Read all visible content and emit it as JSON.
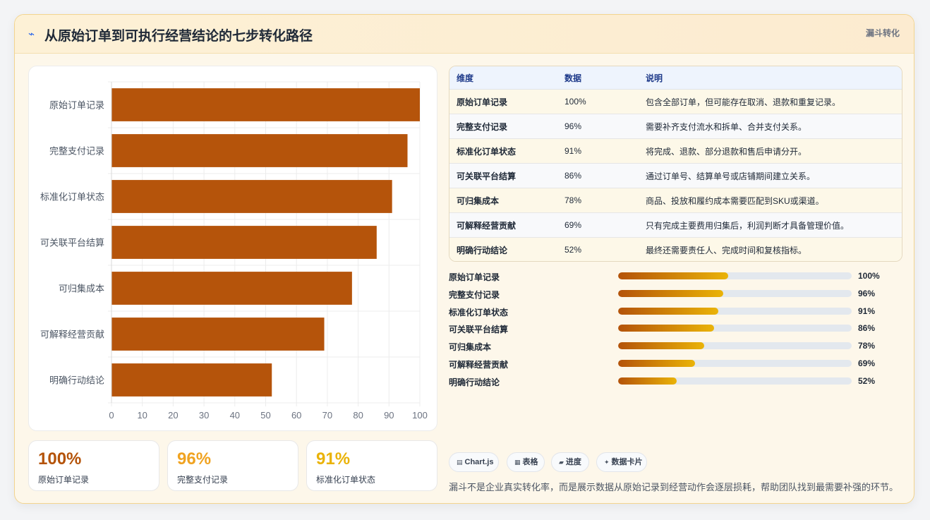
{
  "header": {
    "icon": "lightning-icon",
    "title": "从原始订单到可执行经营结论的七步转化路径",
    "tag": "漏斗转化"
  },
  "chart_data": {
    "type": "bar",
    "orientation": "horizontal",
    "categories": [
      "原始订单记录",
      "完整支付记录",
      "标准化订单状态",
      "可关联平台结算",
      "可归集成本",
      "可解释经营贡献",
      "明确行动结论"
    ],
    "values": [
      100,
      96,
      91,
      86,
      78,
      69,
      52
    ],
    "xlim": [
      0,
      100
    ],
    "xticks": [
      0,
      10,
      20,
      30,
      40,
      50,
      60,
      70,
      80,
      90,
      100
    ],
    "grid": true,
    "color": "#b5540b"
  },
  "stats": [
    {
      "value": "100%",
      "label": "原始订单记录",
      "color": "#b45309"
    },
    {
      "value": "96%",
      "label": "完整支付记录",
      "color": "#f0a321"
    },
    {
      "value": "91%",
      "label": "标准化订单状态",
      "color": "#eab308"
    }
  ],
  "table": {
    "headers": [
      "维度",
      "数据",
      "说明"
    ],
    "rows": [
      {
        "dim": "原始订单记录",
        "val": "100%",
        "desc": "包含全部订单，但可能存在取消、退款和重复记录。"
      },
      {
        "dim": "完整支付记录",
        "val": "96%",
        "desc": "需要补齐支付流水和拆单、合并支付关系。"
      },
      {
        "dim": "标准化订单状态",
        "val": "91%",
        "desc": "将完成、退款、部分退款和售后申请分开。"
      },
      {
        "dim": "可关联平台结算",
        "val": "86%",
        "desc": "通过订单号、结算单号或店铺期间建立关系。"
      },
      {
        "dim": "可归集成本",
        "val": "78%",
        "desc": "商品、投放和履约成本需要匹配到SKU或渠道。"
      },
      {
        "dim": "可解释经营贡献",
        "val": "69%",
        "desc": "只有完成主要费用归集后，利润判断才具备管理价值。"
      },
      {
        "dim": "明确行动结论",
        "val": "52%",
        "desc": "最终还需要责任人、完成时间和复核指标。"
      }
    ]
  },
  "progress": [
    {
      "label": "原始订单记录",
      "value": "100%",
      "fraction": 0.47
    },
    {
      "label": "完整支付记录",
      "value": "96%",
      "fraction": 0.45
    },
    {
      "label": "标准化订单状态",
      "value": "91%",
      "fraction": 0.43
    },
    {
      "label": "可关联平台结算",
      "value": "86%",
      "fraction": 0.41
    },
    {
      "label": "可归集成本",
      "value": "78%",
      "fraction": 0.37
    },
    {
      "label": "可解释经营贡献",
      "value": "69%",
      "fraction": 0.33
    },
    {
      "label": "明确行动结论",
      "value": "52%",
      "fraction": 0.25
    }
  ],
  "chips": [
    {
      "icon": "▤",
      "label": "Chart.js"
    },
    {
      "icon": "▦",
      "label": "表格"
    },
    {
      "icon": "▰",
      "label": "进度"
    },
    {
      "icon": "✦",
      "label": "数据卡片"
    }
  ],
  "footer_note": "漏斗不是企业真实转化率，而是展示数据从原始记录到经营动作会逐层损耗，帮助团队找到最需要补强的环节。"
}
